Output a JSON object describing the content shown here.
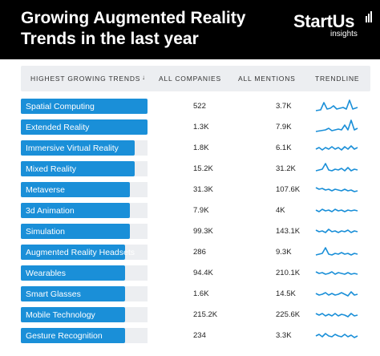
{
  "header": {
    "title": "Growing Augmented Reality Trends in the last year",
    "logo_main": "StartUs",
    "logo_sub": "insights"
  },
  "table": {
    "col_trends": "HIGHEST GROWING TRENDS",
    "col_companies": "ALL COMPANIES",
    "col_mentions": "ALL MENTIONS",
    "col_trendline": "TRENDLINE",
    "rows": [
      {
        "label": "Spatial Computing",
        "companies": "522",
        "mentions": "3.7K",
        "bar": 1.0
      },
      {
        "label": "Extended Reality",
        "companies": "1.3K",
        "mentions": "7.9K",
        "bar": 1.0
      },
      {
        "label": "Immersive Virtual Reality",
        "companies": "1.8K",
        "mentions": "6.1K",
        "bar": 0.9
      },
      {
        "label": "Mixed Reality",
        "companies": "15.2K",
        "mentions": "31.2K",
        "bar": 0.9
      },
      {
        "label": "Metaverse",
        "companies": "31.3K",
        "mentions": "107.6K",
        "bar": 0.86
      },
      {
        "label": "3d Animation",
        "companies": "7.9K",
        "mentions": "4K",
        "bar": 0.86
      },
      {
        "label": "Simulation",
        "companies": "99.3K",
        "mentions": "143.1K",
        "bar": 0.86
      },
      {
        "label": "Augmented Reality Headsets",
        "companies": "286",
        "mentions": "9.3K",
        "bar": 0.82
      },
      {
        "label": "Wearables",
        "companies": "94.4K",
        "mentions": "210.1K",
        "bar": 0.82
      },
      {
        "label": "Smart Glasses",
        "companies": "1.6K",
        "mentions": "14.5K",
        "bar": 0.82
      },
      {
        "label": "Mobile Technology",
        "companies": "215.2K",
        "mentions": "225.6K",
        "bar": 0.82
      },
      {
        "label": "Gesture Recognition",
        "companies": "234",
        "mentions": "3.3K",
        "bar": 0.82
      }
    ]
  },
  "colors": {
    "accent": "#1a8fd8",
    "track": "#eceef1",
    "header_bg": "#000000"
  },
  "icons": {
    "sort": "arrow-down-icon",
    "logo": "startus-logo-icon"
  }
}
